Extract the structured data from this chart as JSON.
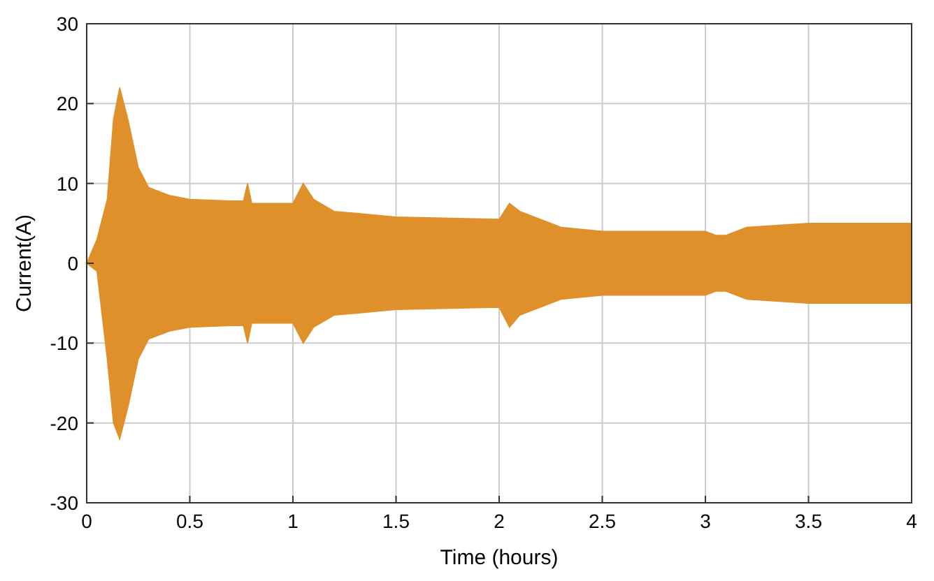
{
  "chart_data": {
    "type": "area",
    "xlabel": "Time (hours)",
    "ylabel": "Current(A)",
    "x": [
      0,
      0.05,
      0.1,
      0.13,
      0.16,
      0.2,
      0.25,
      0.3,
      0.4,
      0.5,
      0.7,
      0.76,
      0.78,
      0.8,
      1.0,
      1.05,
      1.1,
      1.2,
      1.5,
      2.0,
      2.05,
      2.1,
      2.3,
      2.5,
      3.0,
      3.05,
      3.1,
      3.2,
      3.5,
      4.0
    ],
    "series": [
      {
        "color": "#e0902a",
        "values": [
          0,
          3,
          8,
          18,
          22,
          18,
          12,
          9.5,
          8.5,
          8,
          7.8,
          7.8,
          10,
          7.5,
          7.5,
          10,
          8,
          6.5,
          5.8,
          5.5,
          7.5,
          6.5,
          4.5,
          4,
          4,
          3.5,
          3.5,
          4.5,
          5,
          5
        ]
      },
      {
        "color": "#e0902a",
        "values": [
          0,
          -1,
          -12,
          -20,
          -22,
          -18,
          -12,
          -9.5,
          -8.5,
          -8,
          -7.8,
          -7.8,
          -10,
          -7.5,
          -7.5,
          -10,
          -8,
          -6.5,
          -5.8,
          -5.5,
          -8,
          -6.5,
          -4.5,
          -4,
          -4,
          -3.5,
          -3.5,
          -4.5,
          -5,
          -5
        ]
      }
    ],
    "xlim": [
      0,
      4
    ],
    "xticks": [
      0,
      0.5,
      1,
      1.5,
      2,
      2.5,
      3,
      3.5,
      4
    ],
    "ylim": [
      -30,
      30
    ],
    "yticks": [
      -30,
      -20,
      -10,
      0,
      10,
      20,
      30
    ],
    "grid": true
  }
}
